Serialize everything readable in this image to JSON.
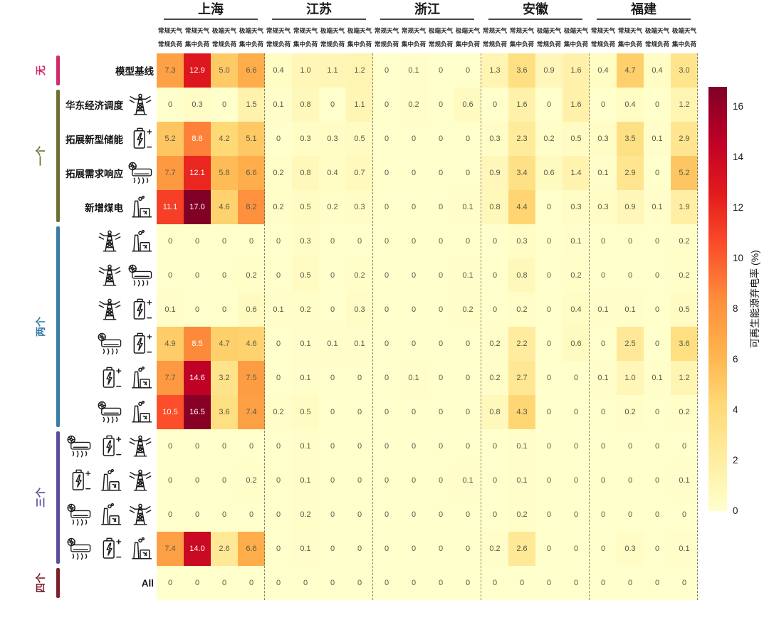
{
  "chart_data": {
    "type": "heatmap",
    "colorbar_label": "可再生能源弃电率 (%)",
    "colorbar_ticks": [
      0,
      2,
      4,
      6,
      8,
      10,
      12,
      14,
      16
    ],
    "vmin": 0,
    "vmax": 16.8,
    "colormap": [
      "#ffffcc",
      "#ffeda0",
      "#fed976",
      "#feb24c",
      "#fd8d3c",
      "#fc4e2a",
      "#e31a1c",
      "#bd0026",
      "#800026"
    ],
    "province_groups": [
      "上海",
      "江苏",
      "浙江",
      "安徽",
      "福建"
    ],
    "column_headers": [
      {
        "line1": "常规天气",
        "line2": "常规负荷"
      },
      {
        "line1": "常规天气",
        "line2": "集中负荷"
      },
      {
        "line1": "极端天气",
        "line2": "常规负荷"
      },
      {
        "line1": "极端天气",
        "line2": "集中负荷"
      }
    ],
    "row_groups": [
      {
        "label": "无",
        "color": "#d12a6b",
        "first_row": 0,
        "last_row": 0
      },
      {
        "label": "一个",
        "color": "#6f7030",
        "first_row": 1,
        "last_row": 4
      },
      {
        "label": "两个",
        "color": "#3a7ca5",
        "first_row": 5,
        "last_row": 10
      },
      {
        "label": "三个",
        "color": "#5f4b9b",
        "first_row": 11,
        "last_row": 14
      },
      {
        "label": "四个",
        "color": "#7a1f2b",
        "first_row": 15,
        "last_row": 15
      }
    ],
    "rows": [
      {
        "label": "模型基线",
        "icons": [],
        "values": [
          7.3,
          12.9,
          5.0,
          6.6,
          0.4,
          1.0,
          1.1,
          1.2,
          0,
          0.1,
          0,
          0,
          1.3,
          3.6,
          0.9,
          1.6,
          0.4,
          4.7,
          0.4,
          3.0
        ]
      },
      {
        "label": "华东经济调度",
        "icons": [
          "tower-icon"
        ],
        "values": [
          0,
          0.3,
          0,
          1.5,
          0.1,
          0.8,
          0,
          1.1,
          0,
          0.2,
          0,
          0.6,
          0,
          1.6,
          0,
          1.6,
          0,
          0.4,
          0,
          1.2
        ]
      },
      {
        "label": "拓展新型储能",
        "icons": [
          "battery-icon"
        ],
        "values": [
          5.2,
          8.8,
          4.2,
          5.1,
          0,
          0.3,
          0.3,
          0.5,
          0,
          0,
          0,
          0,
          0.3,
          2.3,
          0.2,
          0.5,
          0.3,
          3.5,
          0.1,
          2.9
        ]
      },
      {
        "label": "拓展需求响应",
        "icons": [
          "ac-icon"
        ],
        "values": [
          7.7,
          12.1,
          5.8,
          6.6,
          0.2,
          0.8,
          0.4,
          0.7,
          0,
          0,
          0,
          0,
          0.9,
          3.4,
          0.6,
          1.4,
          0.1,
          2.9,
          0,
          5.2
        ]
      },
      {
        "label": "新增煤电",
        "icons": [
          "coal-plant-icon"
        ],
        "values": [
          11.1,
          17.0,
          4.6,
          8.2,
          0.2,
          0.5,
          0.2,
          0.3,
          0,
          0,
          0,
          0.1,
          0.8,
          4.4,
          0,
          0.3,
          0.3,
          0.9,
          0.1,
          1.9
        ]
      },
      {
        "label": "",
        "icons": [
          "tower-icon",
          "coal-plant-icon"
        ],
        "values": [
          0,
          0,
          0,
          0,
          0,
          0.3,
          0,
          0,
          0,
          0,
          0,
          0,
          0,
          0.3,
          0,
          0.1,
          0,
          0,
          0,
          0.2
        ]
      },
      {
        "label": "",
        "icons": [
          "tower-icon",
          "ac-icon"
        ],
        "values": [
          0,
          0,
          0,
          0.2,
          0,
          0.5,
          0,
          0.2,
          0,
          0,
          0,
          0.1,
          0,
          0.8,
          0,
          0.2,
          0,
          0,
          0,
          0.2
        ]
      },
      {
        "label": "",
        "icons": [
          "tower-icon",
          "battery-icon"
        ],
        "values": [
          0.1,
          0,
          0,
          0.6,
          0.1,
          0.2,
          0,
          0.3,
          0,
          0,
          0,
          0.2,
          0,
          0.2,
          0,
          0.4,
          0.1,
          0.1,
          0,
          0.5
        ]
      },
      {
        "label": "",
        "icons": [
          "ac-icon",
          "battery-icon"
        ],
        "values": [
          4.9,
          8.5,
          4.7,
          4.6,
          0,
          0.1,
          0.1,
          0.1,
          0,
          0,
          0,
          0,
          0.2,
          2.2,
          0,
          0.6,
          0,
          2.5,
          0,
          3.6
        ]
      },
      {
        "label": "",
        "icons": [
          "battery-icon",
          "coal-plant-icon"
        ],
        "values": [
          7.7,
          14.6,
          3.2,
          7.5,
          0,
          0.1,
          0,
          0,
          0,
          0.1,
          0,
          0,
          0.2,
          2.7,
          0,
          0,
          0.1,
          1.0,
          0.1,
          1.2
        ]
      },
      {
        "label": "",
        "icons": [
          "ac-icon",
          "coal-plant-icon"
        ],
        "values": [
          10.5,
          16.5,
          3.6,
          7.4,
          0.2,
          0.5,
          0,
          0,
          0,
          0,
          0,
          0,
          0.8,
          4.3,
          0,
          0,
          0,
          0.2,
          0,
          0.2
        ]
      },
      {
        "label": "",
        "icons": [
          "ac-icon",
          "battery-icon",
          "tower-icon"
        ],
        "values": [
          0,
          0,
          0,
          0,
          0,
          0.1,
          0,
          0,
          0,
          0,
          0,
          0,
          0,
          0.1,
          0,
          0,
          0,
          0,
          0,
          0
        ]
      },
      {
        "label": "",
        "icons": [
          "battery-icon",
          "coal-plant-icon",
          "tower-icon"
        ],
        "values": [
          0,
          0,
          0,
          0.2,
          0,
          0.1,
          0,
          0,
          0,
          0,
          0,
          0.1,
          0,
          0.1,
          0,
          0,
          0,
          0,
          0,
          0.1
        ]
      },
      {
        "label": "",
        "icons": [
          "ac-icon",
          "coal-plant-icon",
          "tower-icon"
        ],
        "values": [
          0,
          0,
          0,
          0,
          0,
          0.2,
          0,
          0,
          0,
          0,
          0,
          0,
          0,
          0.2,
          0,
          0,
          0,
          0,
          0,
          0
        ]
      },
      {
        "label": "",
        "icons": [
          "ac-icon",
          "battery-icon",
          "coal-plant-icon"
        ],
        "values": [
          7.4,
          14.0,
          2.6,
          6.6,
          0,
          0.1,
          0,
          0,
          0,
          0,
          0,
          0,
          0.2,
          2.6,
          0,
          0,
          0,
          0.3,
          0,
          0.1
        ]
      },
      {
        "label": "All",
        "icons": [],
        "values": [
          0,
          0,
          0,
          0,
          0,
          0,
          0,
          0,
          0,
          0,
          0,
          0,
          0,
          0,
          0,
          0,
          0,
          0,
          0,
          0
        ]
      }
    ]
  }
}
